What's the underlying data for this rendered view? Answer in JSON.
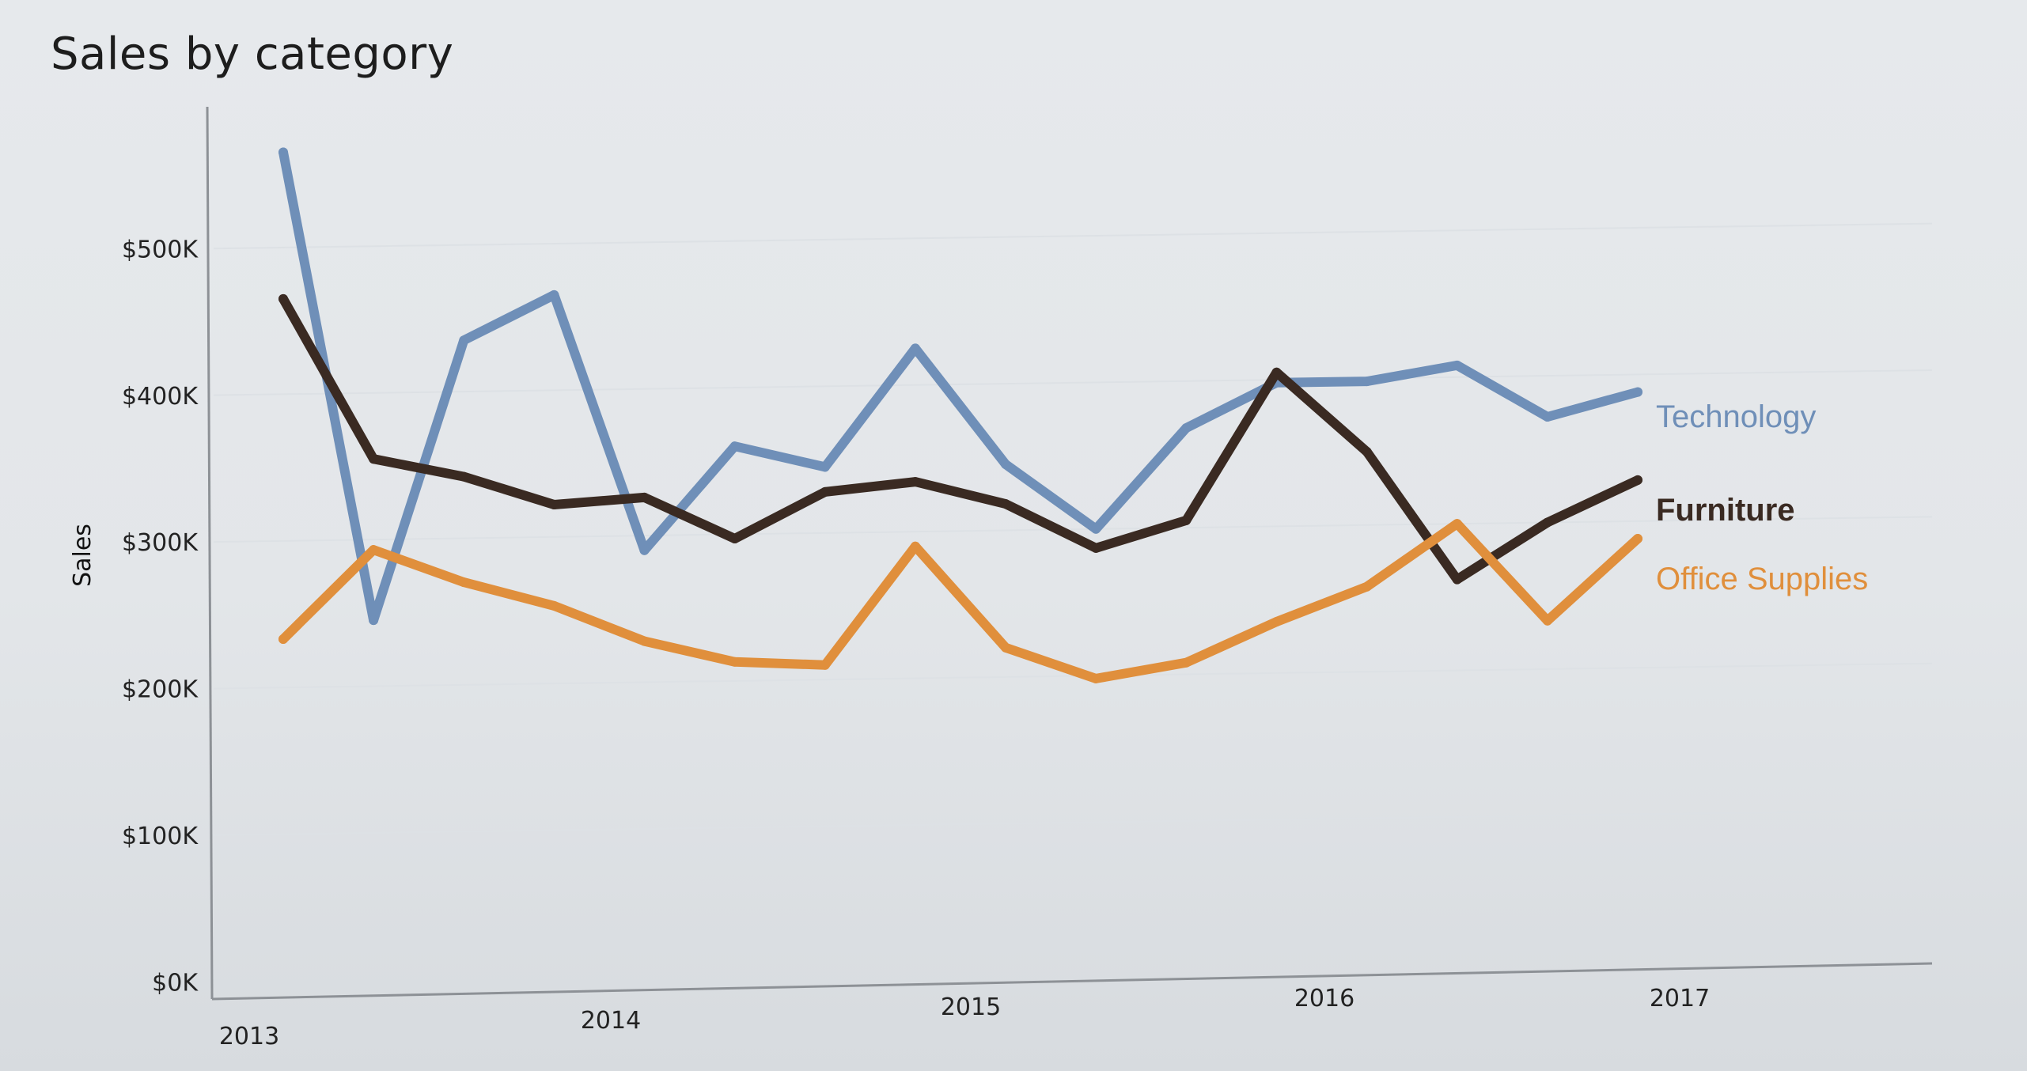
{
  "chart_data": {
    "type": "line",
    "title": "Sales by category",
    "xlabel": "",
    "ylabel": "Sales",
    "ylim": [
      0,
      600000
    ],
    "ytick_values": [
      0,
      100000,
      200000,
      300000,
      400000,
      500000
    ],
    "ytick_labels": [
      "$0K",
      "$100K",
      "$200K",
      "$300K",
      "$400K",
      "$500K"
    ],
    "xtick_values": [
      2013,
      2014,
      2015,
      2016,
      2017
    ],
    "xtick_labels": [
      "2013",
      "2014",
      "2015",
      "2016",
      "2017"
    ],
    "grid": true,
    "legend": "inline labels at line ends",
    "x": [
      "2013 Q1",
      "2013 Q2",
      "2013 Q3",
      "2013 Q4",
      "2014 Q1",
      "2014 Q2",
      "2014 Q3",
      "2014 Q4",
      "2015 Q1",
      "2015 Q2",
      "2015 Q3",
      "2015 Q4",
      "2016 Q1",
      "2016 Q2",
      "2016 Q3",
      "2016 Q4"
    ],
    "series": [
      {
        "name": "Technology",
        "color": "#6f8fb8",
        "values": [
          565000,
          245000,
          435000,
          465000,
          290000,
          360000,
          345000,
          425000,
          345000,
          300000,
          368000,
          398000,
          398000,
          408000,
          372000,
          388000
        ]
      },
      {
        "name": "Furniture",
        "color": "#3a2a22",
        "values": [
          465000,
          355000,
          342000,
          322000,
          326000,
          297000,
          328000,
          334000,
          318000,
          287000,
          305000,
          405000,
          350000,
          262000,
          300000,
          328000
        ]
      },
      {
        "name": "Office Supplies",
        "color": "#e08f3c",
        "values": [
          233000,
          293000,
          270000,
          253000,
          228000,
          213000,
          210000,
          290000,
          220000,
          198000,
          208000,
          235000,
          258000,
          300000,
          233000,
          288000
        ]
      }
    ]
  }
}
